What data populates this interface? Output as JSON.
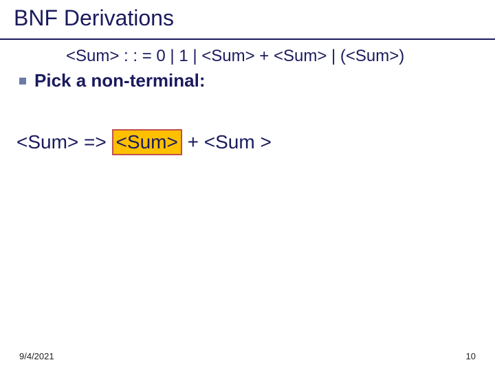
{
  "slide": {
    "title": "BNF Derivations",
    "grammar": "<Sum> : : = 0 | 1 | <Sum> + <Sum> | (<Sum>)",
    "bullet_text": "Pick a non-terminal:",
    "derivation": {
      "lhs": "<Sum> => ",
      "highlighted": "<Sum>",
      "rhs": " + <Sum >"
    },
    "footer": {
      "date": "9/4/2021",
      "page": "10"
    }
  },
  "colors": {
    "title": "#1a1a5e",
    "underline": "#1a1a5e",
    "bullet_square": "#6b7ba8",
    "highlight_bg": "#ffc000",
    "highlight_border": "#c0504d",
    "background": "#ffffff"
  },
  "typography": {
    "title_fontsize": 32,
    "grammar_fontsize": 24,
    "bullet_fontsize": 26,
    "derivation_fontsize": 28,
    "footer_fontsize": 13
  }
}
